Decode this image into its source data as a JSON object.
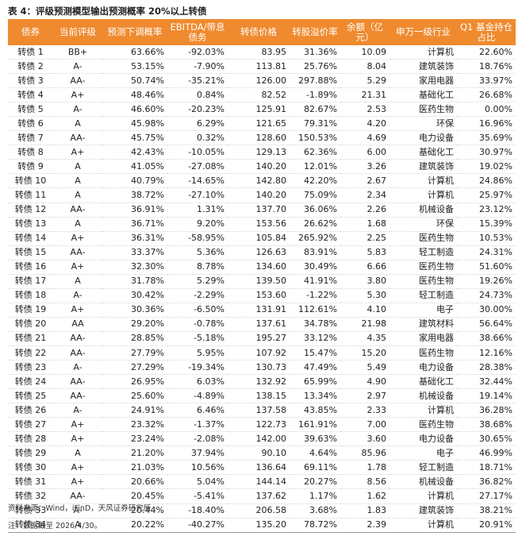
{
  "caption": "表 4：评级预测模型输出预测概率 20%以上转债",
  "headers": [
    "债券",
    "当前评级",
    "预测下调概率",
    "EBITDA/带息债务",
    "转债价格",
    "转股溢价率",
    "余额（亿元）",
    "申万一级行业",
    "Q1 基金持仓占比"
  ],
  "rows": [
    [
      "转债 1",
      "BB+",
      "63.66%",
      "-92.03%",
      "83.95",
      "31.36%",
      "10.09",
      "计算机",
      "22.60%"
    ],
    [
      "转债 2",
      "A-",
      "53.15%",
      "-7.90%",
      "113.81",
      "25.76%",
      "8.04",
      "建筑装饰",
      "18.76%"
    ],
    [
      "转债 3",
      "AA-",
      "50.74%",
      "-35.21%",
      "126.00",
      "297.88%",
      "5.29",
      "家用电器",
      "33.97%"
    ],
    [
      "转债 4",
      "A+",
      "48.46%",
      "0.84%",
      "82.52",
      "-1.89%",
      "21.31",
      "基础化工",
      "26.68%"
    ],
    [
      "转债 5",
      "A-",
      "46.60%",
      "-20.23%",
      "125.91",
      "82.67%",
      "2.53",
      "医药生物",
      "0.00%"
    ],
    [
      "转债 6",
      "A",
      "45.98%",
      "6.29%",
      "121.65",
      "79.31%",
      "4.20",
      "环保",
      "16.96%"
    ],
    [
      "转债 7",
      "AA-",
      "45.75%",
      "0.32%",
      "128.60",
      "150.53%",
      "4.69",
      "电力设备",
      "35.69%"
    ],
    [
      "转债 8",
      "A+",
      "42.43%",
      "-10.05%",
      "129.13",
      "62.36%",
      "6.00",
      "基础化工",
      "30.97%"
    ],
    [
      "转债 9",
      "A",
      "41.05%",
      "-27.08%",
      "140.20",
      "12.01%",
      "3.26",
      "建筑装饰",
      "19.02%"
    ],
    [
      "转债 10",
      "A",
      "40.79%",
      "-14.65%",
      "142.80",
      "42.20%",
      "2.67",
      "计算机",
      "24.86%"
    ],
    [
      "转债 11",
      "A",
      "38.72%",
      "-27.10%",
      "140.20",
      "75.09%",
      "2.34",
      "计算机",
      "25.97%"
    ],
    [
      "转债 12",
      "AA-",
      "36.91%",
      "1.31%",
      "137.70",
      "36.06%",
      "2.26",
      "机械设备",
      "23.12%"
    ],
    [
      "转债 13",
      "A",
      "36.71%",
      "9.20%",
      "153.56",
      "26.62%",
      "1.68",
      "环保",
      "15.39%"
    ],
    [
      "转债 14",
      "A+",
      "36.31%",
      "-58.95%",
      "105.84",
      "265.92%",
      "2.25",
      "医药生物",
      "10.53%"
    ],
    [
      "转债 15",
      "AA-",
      "33.37%",
      "5.36%",
      "126.63",
      "83.91%",
      "5.83",
      "轻工制造",
      "24.31%"
    ],
    [
      "转债 16",
      "A+",
      "32.30%",
      "8.78%",
      "134.60",
      "30.49%",
      "6.66",
      "医药生物",
      "51.60%"
    ],
    [
      "转债 17",
      "A",
      "31.78%",
      "5.29%",
      "139.50",
      "41.91%",
      "3.80",
      "医药生物",
      "19.26%"
    ],
    [
      "转债 18",
      "A-",
      "30.42%",
      "-2.29%",
      "153.60",
      "-1.22%",
      "5.30",
      "轻工制造",
      "24.73%"
    ],
    [
      "转债 19",
      "A+",
      "30.36%",
      "-6.50%",
      "131.91",
      "112.61%",
      "4.10",
      "电子",
      "30.00%"
    ],
    [
      "转债 20",
      "AA",
      "29.20%",
      "-0.78%",
      "137.61",
      "34.78%",
      "21.98",
      "建筑材料",
      "56.64%"
    ],
    [
      "转债 21",
      "AA-",
      "28.85%",
      "-5.18%",
      "195.27",
      "33.12%",
      "4.35",
      "家用电器",
      "38.66%"
    ],
    [
      "转债 22",
      "AA-",
      "27.79%",
      "5.95%",
      "107.92",
      "15.47%",
      "15.20",
      "医药生物",
      "12.16%"
    ],
    [
      "转债 23",
      "A-",
      "27.29%",
      "-19.34%",
      "130.73",
      "47.49%",
      "5.49",
      "电力设备",
      "28.38%"
    ],
    [
      "转债 24",
      "AA-",
      "26.95%",
      "6.03%",
      "132.92",
      "65.99%",
      "4.90",
      "基础化工",
      "32.44%"
    ],
    [
      "转债 25",
      "AA-",
      "25.60%",
      "-4.89%",
      "138.15",
      "13.34%",
      "2.97",
      "机械设备",
      "19.14%"
    ],
    [
      "转债 26",
      "A-",
      "24.91%",
      "6.46%",
      "137.58",
      "43.85%",
      "2.33",
      "计算机",
      "36.28%"
    ],
    [
      "转债 27",
      "A+",
      "23.32%",
      "-1.37%",
      "122.73",
      "161.91%",
      "7.00",
      "医药生物",
      "38.68%"
    ],
    [
      "转债 28",
      "A+",
      "23.24%",
      "-2.08%",
      "142.00",
      "39.63%",
      "3.60",
      "电力设备",
      "30.65%"
    ],
    [
      "转债 29",
      "A",
      "21.20%",
      "37.94%",
      "90.10",
      "4.64%",
      "85.96",
      "电子",
      "46.99%"
    ],
    [
      "转债 30",
      "A+",
      "21.03%",
      "10.56%",
      "136.64",
      "69.11%",
      "1.78",
      "轻工制造",
      "18.71%"
    ],
    [
      "转债 31",
      "A+",
      "20.66%",
      "5.04%",
      "144.14",
      "20.27%",
      "8.56",
      "机械设备",
      "36.82%"
    ],
    [
      "转债 32",
      "AA-",
      "20.45%",
      "-5.41%",
      "137.62",
      "1.17%",
      "1.62",
      "计算机",
      "27.17%"
    ],
    [
      "转债 33",
      "A-",
      "20.44%",
      "-18.40%",
      "206.58",
      "3.68%",
      "1.83",
      "建筑装饰",
      "38.21%"
    ],
    [
      "转债 34",
      "A",
      "20.22%",
      "-40.27%",
      "135.20",
      "78.72%",
      "2.39",
      "计算机",
      "20.91%"
    ]
  ],
  "notes": {
    "source": "资料来源：Wind，iFinD，天风证券研究所",
    "note": "注：数据截至 2026/4/30。"
  },
  "colors": {
    "header_bg": "#ef8a2e",
    "header_text": "#ffffff"
  }
}
